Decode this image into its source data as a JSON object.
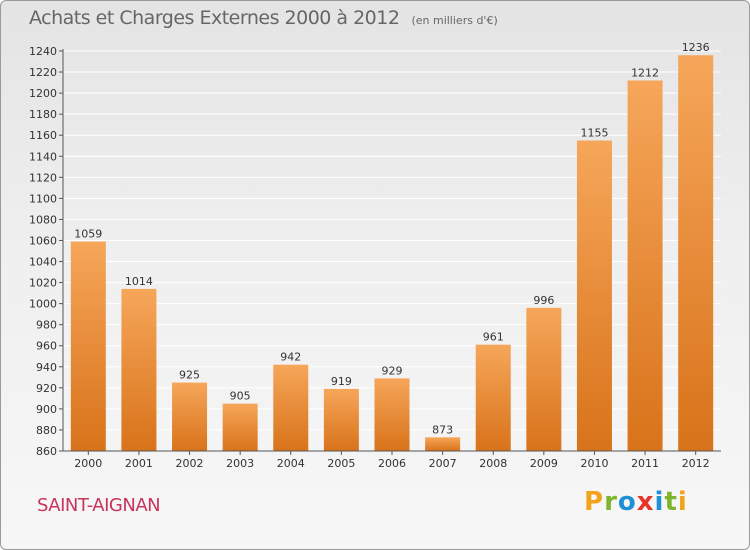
{
  "header": {
    "title": "Achats et Charges Externes 2000 à 2012",
    "unit": "(en milliers d'€)"
  },
  "footer": {
    "commune": "SAINT-AIGNAN",
    "logo_letters": [
      "P",
      "r",
      "o",
      "x",
      "i",
      "t",
      "i"
    ]
  },
  "colors": {
    "bar_top": "#f6a65a",
    "bar_bottom": "#d8731a",
    "commune_text": "#c8345a",
    "grid": "#ffffff"
  },
  "chart_data": {
    "type": "bar",
    "title": "Achats et Charges Externes 2000 à 2012",
    "subtitle": "(en milliers d'€)",
    "categories": [
      "2000",
      "2001",
      "2002",
      "2003",
      "2004",
      "2005",
      "2006",
      "2007",
      "2008",
      "2009",
      "2010",
      "2011",
      "2012"
    ],
    "values": [
      1059,
      1014,
      925,
      905,
      942,
      919,
      929,
      873,
      961,
      996,
      1155,
      1212,
      1236
    ],
    "ylim": [
      860,
      1240
    ],
    "ytick_step": 20,
    "grid": true,
    "data_labels": true
  }
}
